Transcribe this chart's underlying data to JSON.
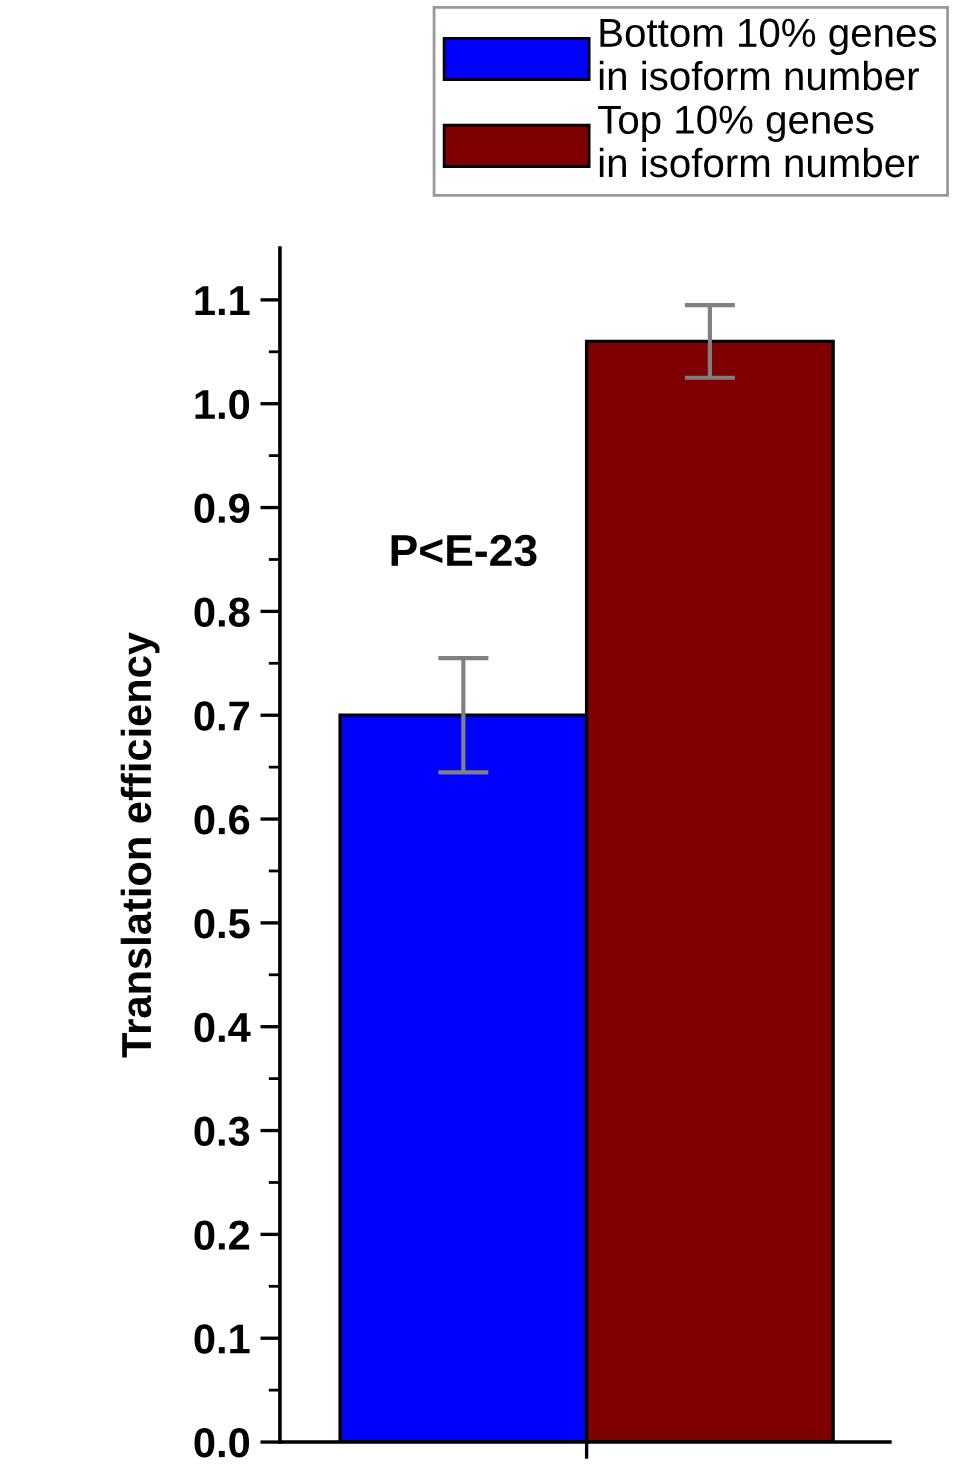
{
  "chart_data": {
    "type": "bar",
    "ylabel": "Translation efficiency",
    "categories": [
      null,
      null
    ],
    "series": [
      {
        "name": "Bottom 10% genes\nin isoform number",
        "color": "#0000ff",
        "values": [
          0.7,
          null
        ],
        "errors": [
          0.055,
          null
        ]
      },
      {
        "name": "Top 10% genes\nin isoform number",
        "color": "#7f0000",
        "values": [
          null,
          1.06
        ],
        "errors": [
          null,
          0.035
        ]
      }
    ],
    "ylim": [
      0,
      1.15
    ],
    "yticks": [
      {
        "value": 0,
        "label": "0.0"
      },
      0.1,
      0.2,
      0.3,
      0.4,
      0.5,
      0.6,
      0.7,
      0.8,
      0.9,
      {
        "value": 1,
        "label": "1.0"
      },
      1.1
    ],
    "annotations": [
      "P<E-23"
    ],
    "legend": "top",
    "grid": false
  }
}
